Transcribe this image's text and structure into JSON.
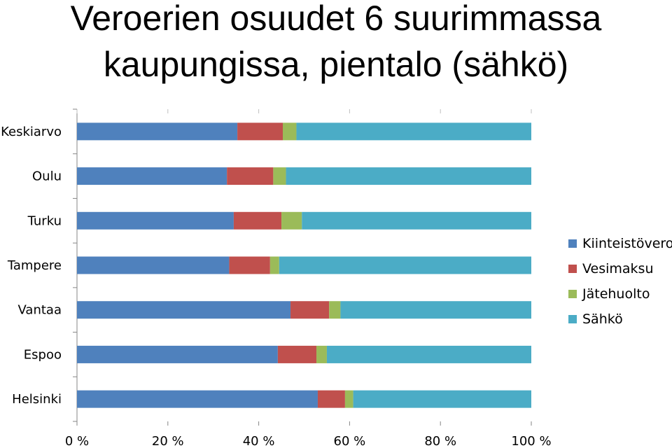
{
  "chart_data": {
    "type": "bar",
    "orientation": "horizontal",
    "stacked": true,
    "title": "Veroerien osuudet 6 suurimmassa kaupungissa, pientalo (sähkö)",
    "title_lines": [
      "Veroerien osuudet 6 suurimmassa",
      "kaupungissa, pientalo (sähkö)"
    ],
    "categories": [
      "Keskiarvo",
      "Oulu",
      "Turku",
      "Tampere",
      "Vantaa",
      "Espoo",
      "Helsinki"
    ],
    "series": [
      {
        "name": "Kiinteistövero",
        "color": "#4F81BD",
        "values": [
          35.3,
          33.0,
          34.5,
          33.5,
          47.0,
          44.2,
          53.0
        ]
      },
      {
        "name": "Vesimaksu",
        "color": "#C0504D",
        "values": [
          10.0,
          10.2,
          10.5,
          9.0,
          8.5,
          8.5,
          6.0
        ]
      },
      {
        "name": "Jätehuolto",
        "color": "#9BBB59",
        "values": [
          3.0,
          2.8,
          4.5,
          2.0,
          2.5,
          2.3,
          1.8
        ]
      },
      {
        "name": "Sähkö",
        "color": "#4BACC6",
        "values": [
          51.7,
          54.0,
          50.5,
          55.5,
          42.0,
          45.0,
          39.2
        ]
      }
    ],
    "xlim": [
      0,
      100
    ],
    "xticks": [
      "0 %",
      "20 %",
      "40 %",
      "60 %",
      "80 %",
      "100 %"
    ],
    "xlabel": "",
    "ylabel": "",
    "legend_position": "right"
  }
}
